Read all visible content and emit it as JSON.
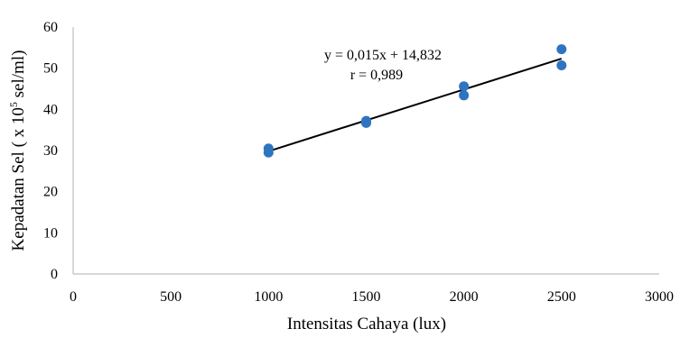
{
  "chart_data": {
    "type": "scatter",
    "xlabel": "Intensitas Cahaya (lux)",
    "ylabel": {
      "prefix": "Kepadatan Sel ( x 10",
      "superscript": "5",
      "suffix": " sel/ml)"
    },
    "xlim": [
      0,
      3000
    ],
    "ylim": [
      0,
      60
    ],
    "xticks": [
      0,
      500,
      1000,
      1500,
      2000,
      2500,
      3000
    ],
    "yticks": [
      0,
      10,
      20,
      30,
      40,
      50,
      60
    ],
    "grid": false,
    "legend": "none",
    "series": [
      {
        "color": "#2f74c0",
        "points": [
          [
            1000,
            29.5
          ],
          [
            1000,
            30.5
          ],
          [
            1500,
            36.7
          ],
          [
            1500,
            37.2
          ],
          [
            2000,
            43.4
          ],
          [
            2000,
            45.6
          ],
          [
            2500,
            50.7
          ],
          [
            2500,
            54.6
          ]
        ]
      }
    ],
    "trendline": {
      "slope": 0.015,
      "intercept": 14.832,
      "x_range": [
        1000,
        2500
      ],
      "color": "#000000"
    },
    "annotations": {
      "equation": "y = 0,015x  + 14,832",
      "r_value": "r = 0,989"
    }
  }
}
